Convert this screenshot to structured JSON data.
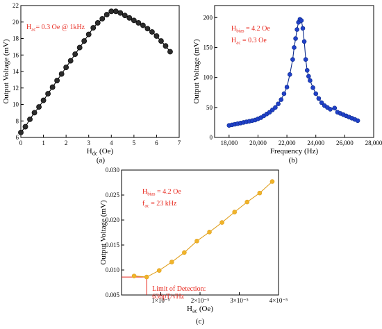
{
  "chart_data": [
    {
      "id": "a",
      "type": "line",
      "panel_label": "(a)",
      "xlabel": {
        "base": "H",
        "sub": "dc",
        "tail": " (Oe)"
      },
      "ylabel": "Output Voltage (mV)",
      "xlim": [
        0,
        7
      ],
      "ylim": [
        6,
        22
      ],
      "xticks": [
        0,
        1,
        2,
        3,
        4,
        5,
        6,
        7
      ],
      "yticks": [
        6,
        8,
        10,
        12,
        14,
        16,
        18,
        20,
        22
      ],
      "xtick_labels": [
        "0",
        "1",
        "2",
        "3",
        "4",
        "5",
        "6",
        "7"
      ],
      "ytick_labels": [
        "6",
        "8",
        "10",
        "12",
        "14",
        "16",
        "18",
        "20",
        "22"
      ],
      "annotation": [
        {
          "base": "H",
          "sub": "ac",
          "tail": "= 0.3 Oe @ 1kHz"
        }
      ],
      "line_color": "#000000",
      "marker_color": "#2b2b2b",
      "series": [
        {
          "x": [
            0.0,
            0.2,
            0.4,
            0.6,
            0.8,
            1.0,
            1.2,
            1.4,
            1.6,
            1.8,
            2.0,
            2.2,
            2.4,
            2.6,
            2.8,
            3.0,
            3.2,
            3.4,
            3.6,
            3.8,
            4.0,
            4.2,
            4.4,
            4.6,
            4.8,
            5.0,
            5.2,
            5.4,
            5.6,
            5.8,
            6.0,
            6.2,
            6.4,
            6.6
          ],
          "y": [
            6.6,
            7.3,
            8.2,
            9.0,
            9.7,
            10.5,
            11.3,
            12.1,
            12.9,
            13.7,
            14.5,
            15.3,
            16.1,
            16.9,
            17.7,
            18.5,
            19.3,
            19.9,
            20.4,
            20.9,
            21.3,
            21.3,
            21.1,
            20.8,
            20.5,
            20.2,
            19.9,
            19.6,
            19.2,
            18.8,
            18.3,
            17.7,
            17.1,
            16.4
          ]
        }
      ]
    },
    {
      "id": "b",
      "type": "line",
      "panel_label": "(b)",
      "xlabel": {
        "base": "Frequency (Hz)",
        "sub": "",
        "tail": ""
      },
      "ylabel": "Output Voltage (mV)",
      "xlim": [
        17000,
        28000
      ],
      "ylim": [
        0,
        220
      ],
      "xticks": [
        18000,
        20000,
        22000,
        24000,
        26000,
        28000
      ],
      "yticks": [
        0,
        50,
        100,
        150,
        200
      ],
      "xtick_labels": [
        "18,000",
        "20,000",
        "22,000",
        "24,000",
        "26,000",
        "28,000"
      ],
      "ytick_labels": [
        "0",
        "50",
        "100",
        "150",
        "200"
      ],
      "annotation": [
        {
          "base": "H",
          "sub": "bias",
          "tail": " = 4.2 Oe"
        },
        {
          "base": "H",
          "sub": "ac",
          "tail": " = 0.3 Oe"
        }
      ],
      "line_color": "#0b2a8a",
      "marker_color": "#2040c8",
      "series": [
        {
          "x": [
            18000,
            18200,
            18400,
            18600,
            18800,
            19000,
            19200,
            19400,
            19600,
            19800,
            20000,
            20200,
            20400,
            20600,
            20800,
            21000,
            21200,
            21400,
            21600,
            21800,
            22000,
            22200,
            22400,
            22500,
            22600,
            22700,
            22800,
            22900,
            23000,
            23100,
            23200,
            23300,
            23400,
            23500,
            23600,
            23800,
            24000,
            24200,
            24400,
            24600,
            24800,
            25000,
            25300,
            25500,
            25700,
            25900,
            26100,
            26300,
            26500,
            26700,
            26900
          ],
          "y": [
            20,
            21,
            22,
            23,
            24,
            25,
            26,
            27,
            28,
            29,
            31,
            33,
            36,
            39,
            42,
            46,
            50,
            56,
            63,
            73,
            84,
            105,
            130,
            150,
            165,
            180,
            192,
            197,
            195,
            182,
            160,
            130,
            112,
            102,
            95,
            83,
            73,
            65,
            58,
            53,
            50,
            47,
            49,
            42,
            40,
            38,
            36,
            34,
            32,
            30,
            28
          ]
        }
      ]
    },
    {
      "id": "c",
      "type": "line",
      "panel_label": "(c)",
      "xlabel": {
        "base": "H",
        "sub": "ac",
        "tail": " (Oe)"
      },
      "ylabel": "Output Voltage (mV)",
      "xlim": [
        0,
        4e-05
      ],
      "ylim": [
        0.005,
        0.03
      ],
      "xticks": [
        1e-05,
        2e-05,
        3e-05,
        4e-05
      ],
      "yticks": [
        0.005,
        0.01,
        0.015,
        0.02,
        0.025,
        0.03
      ],
      "xtick_labels": [
        "1×10⁻⁵",
        "2×10⁻⁵",
        "3×10⁻⁵",
        "4×10⁻⁵"
      ],
      "ytick_labels": [
        "0.005",
        "0.010",
        "0.015",
        "0.020",
        "0.025",
        "0.030"
      ],
      "annotation": [
        {
          "base": "H",
          "sub": "bias",
          "tail": " = 4.2 Oe"
        },
        {
          "base": "f",
          "sub": "ac",
          "tail": "   = 23 kHz"
        }
      ],
      "lod_label": [
        "Limit of Detection:",
        "636pT/√Hz"
      ],
      "lod_x": 6.4e-06,
      "lod_y": 0.0086,
      "line_color": "#e0a020",
      "marker_color": "#f0b42a",
      "series": [
        {
          "x": [
            3.2e-06,
            6.4e-06,
            9.6e-06,
            1.28e-05,
            1.6e-05,
            1.92e-05,
            2.24e-05,
            2.56e-05,
            2.88e-05,
            3.2e-05,
            3.52e-05,
            3.84e-05
          ],
          "y": [
            0.0088,
            0.0086,
            0.0099,
            0.0116,
            0.0135,
            0.0158,
            0.0176,
            0.0195,
            0.0216,
            0.0236,
            0.0254,
            0.0277
          ]
        }
      ]
    }
  ]
}
